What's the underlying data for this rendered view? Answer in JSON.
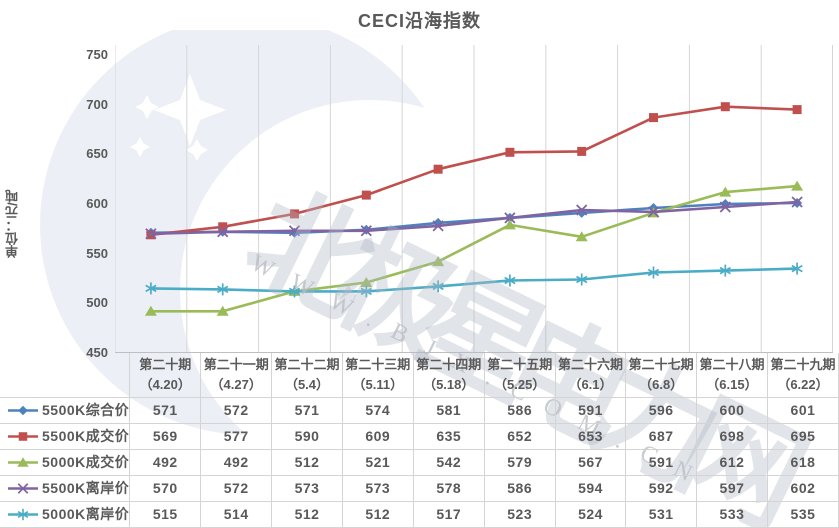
{
  "watermark": {
    "text": "北极星电力网",
    "url_text": "WWW.BJX.COM.CN",
    "logo": "bjx-star-crescent-logo",
    "logo_color": "#ECF0F6"
  },
  "colors": {
    "text": "#595959",
    "grid": "#d6d6d6",
    "axis": "#bfbfbf",
    "table_border": "#d4d4d4"
  },
  "chart_data": {
    "type": "line",
    "title": "CECI沿海指数",
    "ylabel": "单位：元/吨",
    "xlabel": "",
    "ylim": [
      450,
      750
    ],
    "yticks": [
      750,
      700,
      650,
      600,
      550,
      500,
      450
    ],
    "grid": "vertical-only",
    "legend_position": "table-left",
    "categories": [
      {
        "name": "第二十期",
        "date": "（4.20）"
      },
      {
        "name": "第二十一期",
        "date": "（4.27）"
      },
      {
        "name": "第二十二期",
        "date": "（5.4）"
      },
      {
        "name": "第二十三期",
        "date": "（5.11）"
      },
      {
        "name": "第二十四期",
        "date": "（5.18）"
      },
      {
        "name": "第二十五期",
        "date": "（5.25）"
      },
      {
        "name": "第二十六期",
        "date": "（6.1）"
      },
      {
        "name": "第二十七期",
        "date": "（6.8）"
      },
      {
        "name": "第二十八期",
        "date": "（6.15）"
      },
      {
        "name": "第二十九期",
        "date": "（6.22）"
      }
    ],
    "series": [
      {
        "name": "5500K综合价",
        "color": "#4F81BD",
        "marker": "diamond",
        "values": [
          571,
          572,
          571,
          574,
          581,
          586,
          591,
          596,
          600,
          601
        ]
      },
      {
        "name": "5500K成交价",
        "color": "#C0504D",
        "marker": "square",
        "values": [
          569,
          577,
          590,
          609,
          635,
          652,
          653,
          687,
          698,
          695
        ]
      },
      {
        "name": "5000K成交价",
        "color": "#9BBB59",
        "marker": "triangle",
        "values": [
          492,
          492,
          512,
          521,
          542,
          579,
          567,
          591,
          612,
          618
        ]
      },
      {
        "name": "5500K离岸价",
        "color": "#8064A2",
        "marker": "x",
        "values": [
          570,
          572,
          573,
          573,
          578,
          586,
          594,
          592,
          597,
          602
        ]
      },
      {
        "name": "5000K离岸价",
        "color": "#4BACC6",
        "marker": "asterisk",
        "values": [
          515,
          514,
          512,
          512,
          517,
          523,
          524,
          531,
          533,
          535
        ]
      }
    ]
  }
}
